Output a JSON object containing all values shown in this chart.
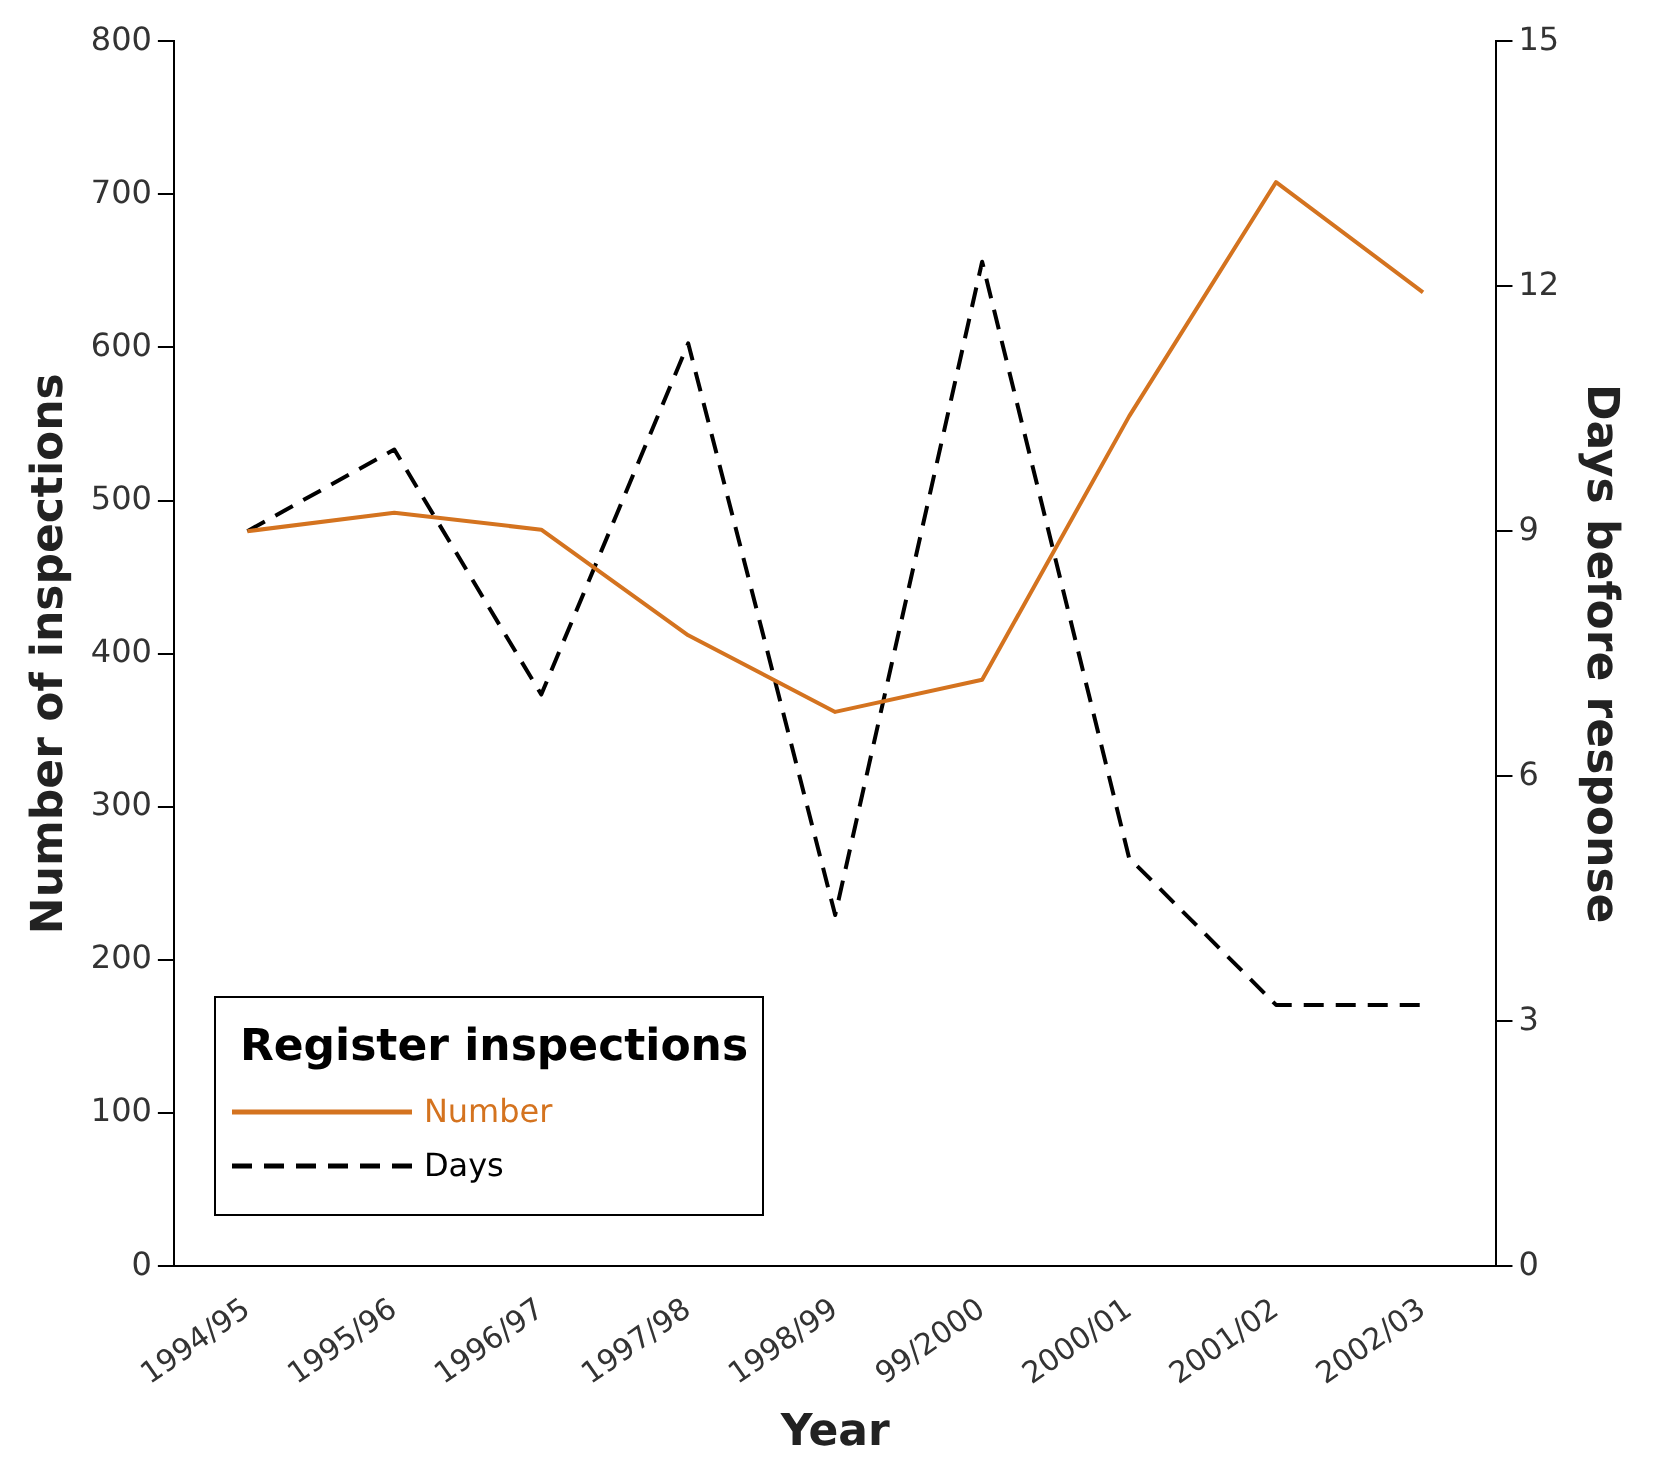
{
  "chart_data": {
    "type": "line",
    "xlabel": "Year",
    "ylabel": "Number of inspections",
    "y2label": "Days before response",
    "legend_title": "Register inspections",
    "legend": "bottom left",
    "grid": false,
    "categories": [
      "1994/95",
      "1995/96",
      "1996/97",
      "1997/98",
      "1998/99",
      "99/2000",
      "2000/01",
      "2001/02",
      "2002/03"
    ],
    "series": [
      {
        "name": "Number",
        "color": "#d4731f",
        "line_style": "solid",
        "values": [
          480,
          492,
          481,
          412,
          362,
          383,
          555,
          708,
          636
        ]
      },
      {
        "name": "Days",
        "color": "#000000",
        "line_style": "dashed",
        "axis": "y2",
        "values": [
          9.0,
          10.0,
          7.0,
          11.3,
          4.3,
          12.3,
          5.0,
          3.2,
          3.2
        ]
      }
    ],
    "ylim": [
      0,
      800
    ],
    "yticks": [
      0,
      100,
      200,
      300,
      400,
      500,
      600,
      700,
      800
    ],
    "y2lim": [
      0,
      15
    ],
    "y2ticks": [
      0,
      3,
      6,
      9,
      12,
      15
    ]
  }
}
